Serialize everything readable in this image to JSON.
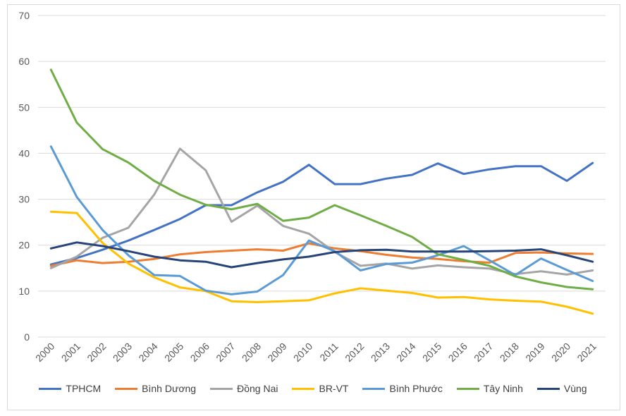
{
  "chart_data": {
    "type": "line",
    "title": "",
    "xlabel": "",
    "ylabel": "",
    "ylim": [
      0,
      70
    ],
    "yticks": [
      0,
      10,
      20,
      30,
      40,
      50,
      60,
      70
    ],
    "grid": true,
    "legend_position": "bottom",
    "categories": [
      "2000",
      "2001",
      "2002",
      "2003",
      "2004",
      "2005",
      "2006",
      "2007",
      "2008",
      "2009",
      "2010",
      "2011",
      "2012",
      "2013",
      "2014",
      "2015",
      "2016",
      "2017",
      "2018",
      "2019",
      "2020",
      "2021"
    ],
    "series": [
      {
        "name": "TPHCM",
        "color": "#4472c4",
        "values": [
          15.8,
          17.2,
          19.0,
          21.0,
          23.3,
          25.7,
          28.7,
          28.7,
          31.5,
          33.8,
          37.5,
          33.3,
          33.3,
          34.5,
          35.3,
          37.8,
          35.5,
          36.5,
          37.2,
          37.2,
          34.0,
          37.9
        ]
      },
      {
        "name": "Bình Dương",
        "color": "#ed7d31",
        "values": [
          15.5,
          16.7,
          16.1,
          16.4,
          17.0,
          18.0,
          18.5,
          18.8,
          19.1,
          18.8,
          20.4,
          19.3,
          18.7,
          17.9,
          17.3,
          17.0,
          16.5,
          16.2,
          18.3,
          18.4,
          18.2,
          18.1
        ]
      },
      {
        "name": "Đồng Nai",
        "color": "#a5a5a5",
        "values": [
          15.0,
          17.5,
          21.6,
          23.8,
          31.0,
          41.0,
          36.3,
          25.1,
          28.6,
          24.2,
          22.5,
          18.5,
          15.5,
          16.0,
          14.9,
          15.6,
          15.2,
          14.9,
          13.7,
          14.3,
          13.6,
          14.5
        ]
      },
      {
        "name": "BR-VT",
        "color": "#ffc000",
        "values": [
          27.3,
          27.0,
          20.5,
          16.0,
          13.0,
          10.8,
          10.0,
          7.8,
          7.6,
          7.8,
          8.0,
          9.5,
          10.6,
          10.1,
          9.6,
          8.6,
          8.7,
          8.2,
          7.9,
          7.7,
          6.6,
          5.1
        ]
      },
      {
        "name": "Bình Phước",
        "color": "#5b9bd5",
        "values": [
          41.5,
          30.5,
          23.3,
          17.8,
          13.5,
          13.3,
          10.1,
          9.3,
          9.9,
          13.5,
          21.0,
          18.7,
          14.5,
          15.9,
          16.2,
          17.8,
          19.8,
          16.7,
          13.5,
          17.1,
          14.6,
          12.2
        ]
      },
      {
        "name": "Tây Ninh",
        "color": "#70ad47",
        "values": [
          58.2,
          46.7,
          40.9,
          38.0,
          34.0,
          31.0,
          28.8,
          27.8,
          29.0,
          25.3,
          26.0,
          28.7,
          26.5,
          24.2,
          21.8,
          18.0,
          16.8,
          15.5,
          13.2,
          11.9,
          10.9,
          10.4
        ]
      },
      {
        "name": "Vùng",
        "color": "#264478",
        "values": [
          19.3,
          20.6,
          19.8,
          18.7,
          17.5,
          16.7,
          16.4,
          15.2,
          16.1,
          16.9,
          17.5,
          18.5,
          18.9,
          19.0,
          18.6,
          18.6,
          18.6,
          18.7,
          18.8,
          19.1,
          17.8,
          16.4
        ]
      }
    ]
  }
}
